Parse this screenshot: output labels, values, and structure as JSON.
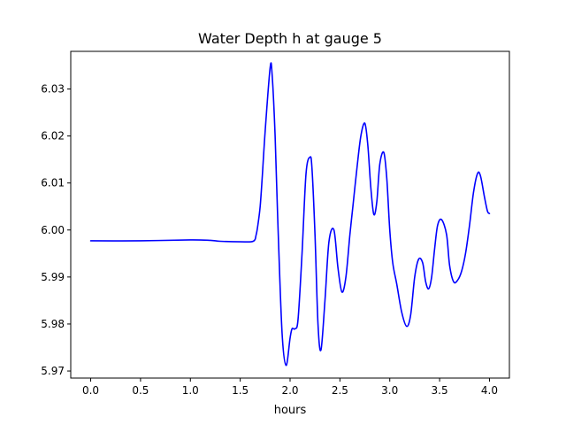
{
  "chart_data": {
    "type": "line",
    "title": "Water Depth h at gauge 5",
    "xlabel": "hours",
    "ylabel": "",
    "xlim": [
      -0.2,
      4.2
    ],
    "ylim": [
      5.9685,
      6.038
    ],
    "xticks": [
      0.0,
      0.5,
      1.0,
      1.5,
      2.0,
      2.5,
      3.0,
      3.5,
      4.0
    ],
    "xtick_labels": [
      "0.0",
      "0.5",
      "1.0",
      "1.5",
      "2.0",
      "2.5",
      "3.0",
      "3.5",
      "4.0"
    ],
    "yticks": [
      5.97,
      5.98,
      5.99,
      6.0,
      6.01,
      6.02,
      6.03
    ],
    "ytick_labels": [
      "5.97",
      "5.98",
      "5.99",
      "6.00",
      "6.01",
      "6.02",
      "6.03"
    ],
    "grid": false,
    "legend": "none",
    "series": [
      {
        "color": "#0000ff",
        "x": [
          0.0,
          0.5,
          1.0,
          1.2,
          1.3,
          1.5,
          1.63,
          1.66,
          1.68,
          1.7,
          1.72,
          1.75,
          1.8,
          1.82,
          1.85,
          1.88,
          1.92,
          1.96,
          2.0,
          2.02,
          2.05,
          2.08,
          2.12,
          2.16,
          2.2,
          2.22,
          2.25,
          2.28,
          2.31,
          2.35,
          2.39,
          2.44,
          2.48,
          2.52,
          2.56,
          2.6,
          2.63,
          2.67,
          2.71,
          2.75,
          2.78,
          2.81,
          2.84,
          2.87,
          2.9,
          2.94,
          2.97,
          3.0,
          3.03,
          3.07,
          3.12,
          3.17,
          3.21,
          3.25,
          3.29,
          3.33,
          3.36,
          3.39,
          3.42,
          3.45,
          3.48,
          3.52,
          3.57,
          3.6,
          3.64,
          3.68,
          3.72,
          3.76,
          3.8,
          3.84,
          3.88,
          3.91,
          3.95,
          3.98,
          4.0
        ],
        "y": [
          5.9977,
          5.9977,
          5.9979,
          5.9978,
          5.9976,
          5.9975,
          5.9976,
          5.999,
          6.0015,
          6.005,
          6.011,
          6.021,
          6.0345,
          6.033,
          6.02,
          6.0,
          5.978,
          5.9712,
          5.977,
          5.979,
          5.979,
          5.981,
          5.995,
          6.012,
          6.0155,
          6.013,
          5.999,
          5.98,
          5.9745,
          5.985,
          5.9975,
          6.0,
          5.992,
          5.9868,
          5.99,
          5.999,
          6.005,
          6.013,
          6.02,
          6.0227,
          6.018,
          6.009,
          6.0033,
          6.006,
          6.014,
          6.0165,
          6.011,
          6.0,
          5.993,
          5.9885,
          5.9825,
          5.9795,
          5.982,
          5.99,
          5.9938,
          5.993,
          5.989,
          5.9875,
          5.99,
          5.996,
          6.001,
          6.0022,
          5.999,
          5.9925,
          5.989,
          5.9893,
          5.9912,
          5.995,
          6.001,
          6.008,
          6.012,
          6.0115,
          6.007,
          6.004,
          6.0035
        ]
      }
    ]
  }
}
